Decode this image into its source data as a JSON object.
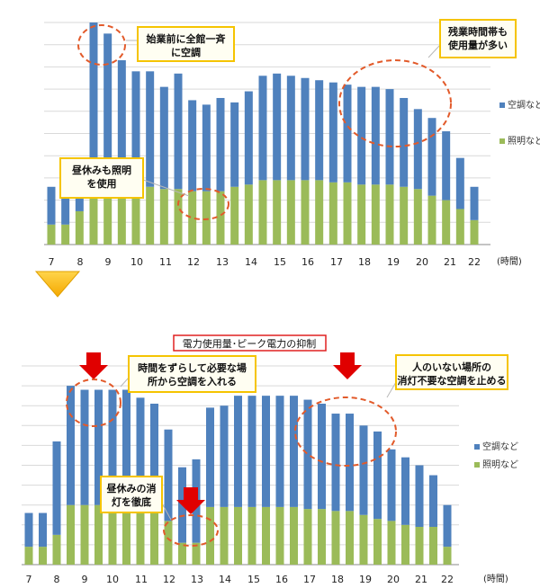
{
  "chart_data": [
    {
      "type": "bar",
      "stacked": true,
      "categories": [
        "7",
        "7.5",
        "8",
        "8.5",
        "9",
        "9.5",
        "10",
        "10.5",
        "11",
        "11.5",
        "12",
        "12.5",
        "13",
        "13.5",
        "14",
        "14.5",
        "15",
        "15.5",
        "16",
        "16.5",
        "17",
        "17.5",
        "18",
        "18.5",
        "19",
        "19.5",
        "20",
        "20.5",
        "21",
        "21.5",
        "22"
      ],
      "x_tick_labels": [
        "7",
        "8",
        "9",
        "10",
        "11",
        "12",
        "13",
        "14",
        "15",
        "16",
        "17",
        "18",
        "19",
        "20",
        "21",
        "22"
      ],
      "x_unit": "(時間)",
      "ylim": [
        0,
        10
      ],
      "grid": true,
      "legend_position": "right",
      "series": [
        {
          "name": "照明など",
          "color": "#9bbb59",
          "values": [
            0.9,
            0.9,
            1.5,
            2.7,
            2.6,
            2.6,
            2.6,
            2.6,
            2.5,
            2.5,
            2.4,
            2.4,
            2.4,
            2.6,
            2.7,
            2.9,
            2.9,
            2.9,
            2.9,
            2.9,
            2.8,
            2.8,
            2.7,
            2.7,
            2.7,
            2.6,
            2.5,
            2.2,
            2.0,
            1.6,
            1.1
          ]
        },
        {
          "name": "空調など",
          "color": "#4f81bd",
          "values": [
            1.7,
            1.7,
            1.6,
            7.3,
            6.9,
            5.7,
            5.2,
            5.2,
            4.6,
            5.2,
            4.1,
            3.9,
            4.2,
            3.8,
            4.2,
            4.7,
            4.8,
            4.7,
            4.6,
            4.5,
            4.5,
            4.4,
            4.4,
            4.4,
            4.3,
            4.0,
            3.6,
            3.5,
            3.1,
            2.3,
            1.5
          ]
        }
      ],
      "annotations": [
        {
          "text": "始業前に全館一斉に空調"
        },
        {
          "text": "残業時間帯も使用量が多い"
        },
        {
          "text": "昼休みも照明を使用"
        }
      ]
    },
    {
      "type": "bar",
      "stacked": true,
      "title": "電力使用量･ピーク電力の抑制",
      "categories": [
        "7",
        "7.5",
        "8",
        "8.5",
        "9",
        "9.5",
        "10",
        "10.5",
        "11",
        "11.5",
        "12",
        "12.5",
        "13",
        "13.5",
        "14",
        "14.5",
        "15",
        "15.5",
        "16",
        "16.5",
        "17",
        "17.5",
        "18",
        "18.5",
        "19",
        "19.5",
        "20",
        "20.5",
        "21",
        "21.5",
        "22"
      ],
      "x_tick_labels": [
        "7",
        "8",
        "9",
        "10",
        "11",
        "12",
        "13",
        "14",
        "15",
        "16",
        "17",
        "18",
        "19",
        "20",
        "21",
        "22"
      ],
      "x_unit": "(時間)",
      "ylim": [
        0,
        10
      ],
      "grid": true,
      "legend_position": "right",
      "series": [
        {
          "name": "照明など",
          "color": "#9bbb59",
          "values": [
            0.9,
            0.9,
            1.5,
            3.0,
            3.0,
            3.0,
            3.0,
            3.0,
            2.9,
            2.9,
            2.2,
            1.1,
            1.1,
            2.9,
            2.9,
            2.9,
            2.9,
            2.9,
            2.9,
            2.9,
            2.8,
            2.8,
            2.7,
            2.7,
            2.5,
            2.3,
            2.2,
            2.0,
            1.9,
            1.9,
            0.9
          ]
        },
        {
          "name": "空調など",
          "color": "#4f81bd",
          "values": [
            1.7,
            1.7,
            4.7,
            6.0,
            5.8,
            5.8,
            5.8,
            5.8,
            5.5,
            5.2,
            4.6,
            3.8,
            4.2,
            5.0,
            5.1,
            5.6,
            5.6,
            5.6,
            5.6,
            5.6,
            5.5,
            5.3,
            4.9,
            4.9,
            4.5,
            4.4,
            3.6,
            3.4,
            3.1,
            2.6,
            2.1
          ]
        }
      ],
      "annotations": [
        {
          "text": "時間をずらして必要な場所から空調を入れる"
        },
        {
          "text": "人のいない場所の消灯不要な空調を止める"
        },
        {
          "text": "昼休みの消灯を徹底"
        }
      ]
    }
  ],
  "arrow_color": "#ffc000",
  "highlight_arrow_color": "#e00000",
  "callout_border_color": "#f5c400",
  "dashed_circle_color": "#e25a2a"
}
